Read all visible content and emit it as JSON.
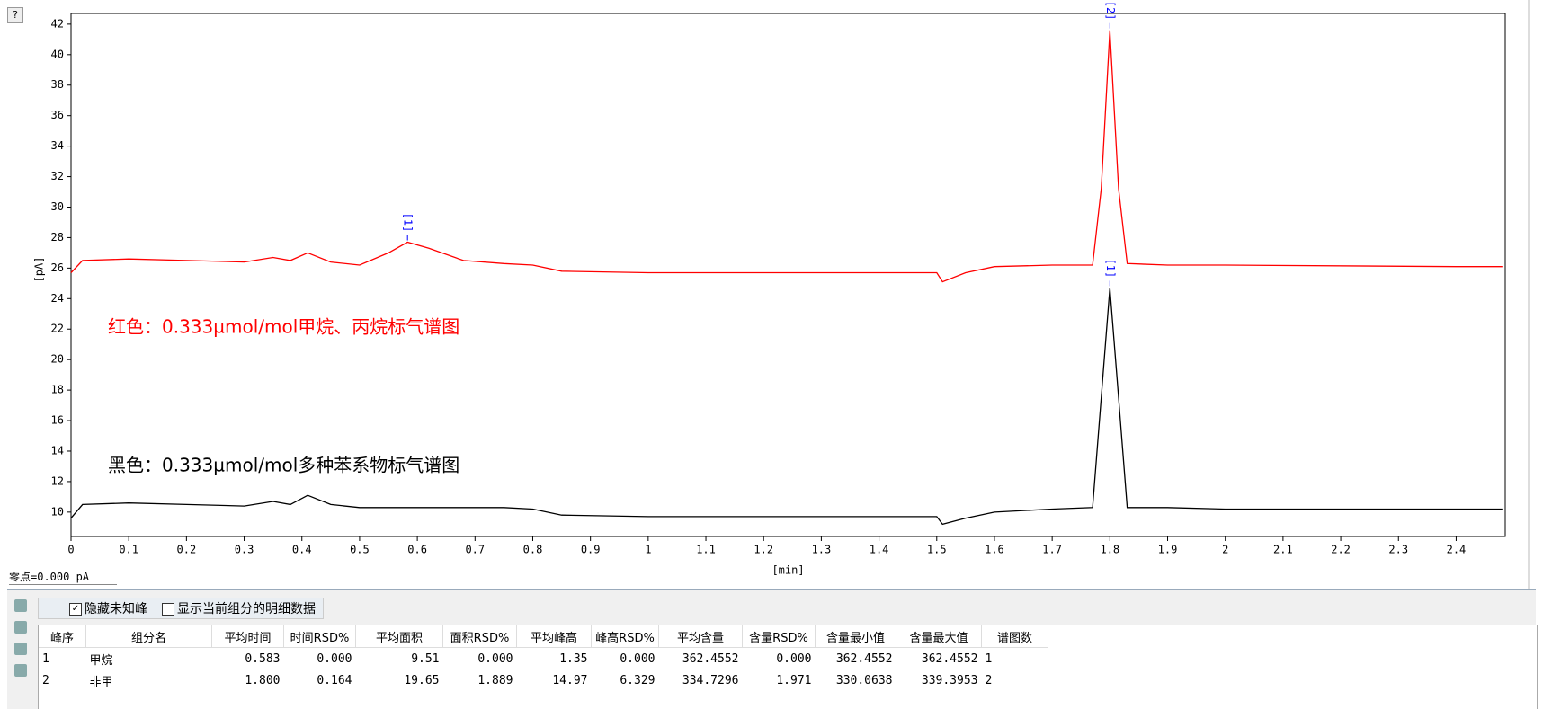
{
  "help_button": "?",
  "chart_data": {
    "type": "line",
    "x": [
      0,
      0.02,
      0.1,
      0.2,
      0.3,
      0.35,
      0.38,
      0.41,
      0.45,
      0.5,
      0.55,
      0.583,
      0.62,
      0.68,
      0.75,
      0.8,
      0.85,
      1.0,
      1.5,
      1.51,
      1.55,
      1.6,
      1.7,
      1.77,
      1.785,
      1.8,
      1.815,
      1.83,
      1.9,
      2.0,
      2.4,
      2.48
    ],
    "series": [
      {
        "color": "#ff0000",
        "values": [
          25.7,
          26.5,
          26.6,
          26.5,
          26.4,
          26.7,
          26.5,
          27.0,
          26.4,
          26.2,
          27.0,
          27.7,
          27.3,
          26.5,
          26.3,
          26.2,
          25.8,
          25.7,
          25.7,
          25.1,
          25.7,
          26.1,
          26.2,
          26.2,
          31.2,
          41.6,
          31.2,
          26.3,
          26.2,
          26.2,
          26.1,
          26.1
        ]
      },
      {
        "color": "#000000",
        "values": [
          9.6,
          10.5,
          10.6,
          10.5,
          10.4,
          10.7,
          10.5,
          11.1,
          10.5,
          10.3,
          10.3,
          10.3,
          10.3,
          10.3,
          10.3,
          10.2,
          9.8,
          9.7,
          9.7,
          9.2,
          9.6,
          10.0,
          10.2,
          10.3,
          17.5,
          24.7,
          17.5,
          10.3,
          10.3,
          10.2,
          10.2,
          10.2
        ]
      }
    ],
    "peak_labels": [
      {
        "text": "[1]",
        "series": 0,
        "x": 0.583
      },
      {
        "text": "[2]",
        "series": 0,
        "x": 1.8
      },
      {
        "text": "[1]",
        "series": 1,
        "x": 1.8
      }
    ],
    "peak_label_color": "#0000ff",
    "annotations": [
      {
        "text": "红色：0.333µmol/mol甲烷、丙烷标气谱图",
        "color": "#ff0000"
      },
      {
        "text": "黑色：0.333µmol/mol多种苯系物标气谱图",
        "color": "#000000"
      }
    ],
    "xlabel": "[min]",
    "ylabel": "[pA]",
    "xlim": [
      0,
      2.485
    ],
    "ylim": [
      8.4,
      42.7
    ],
    "xticks": [
      0,
      0.1,
      0.2,
      0.3,
      0.4,
      0.5,
      0.6,
      0.7,
      0.8,
      0.9,
      1,
      1.1,
      1.2,
      1.3,
      1.4,
      1.5,
      1.6,
      1.7,
      1.8,
      1.9,
      2,
      2.1,
      2.2,
      2.3,
      2.4
    ],
    "yticks": [
      10,
      12,
      14,
      16,
      18,
      20,
      22,
      24,
      26,
      28,
      30,
      32,
      34,
      36,
      38,
      40,
      42
    ],
    "grid": false
  },
  "zero_point": "零点=0.000 pA",
  "toolbar": {
    "hide_unknown": "隐藏未知峰",
    "show_detail": "显示当前组分的明细数据"
  },
  "table": {
    "headers": [
      "峰序",
      "组分名",
      "平均时间",
      "时间RSD%",
      "平均面积",
      "面积RSD%",
      "平均峰高",
      "峰高RSD%",
      "平均含量",
      "含量RSD%",
      "含量最小值",
      "含量最大值",
      "谱图数"
    ],
    "rows": [
      [
        "1",
        "甲烷",
        "0.583",
        "0.000",
        "9.51",
        "0.000",
        "1.35",
        "0.000",
        "362.4552",
        "0.000",
        "362.4552",
        "362.4552",
        "1"
      ],
      [
        "2",
        "非甲",
        "1.800",
        "0.164",
        "19.65",
        "1.889",
        "14.97",
        "6.329",
        "334.7296",
        "1.971",
        "330.0638",
        "339.3953",
        "2"
      ]
    ]
  }
}
